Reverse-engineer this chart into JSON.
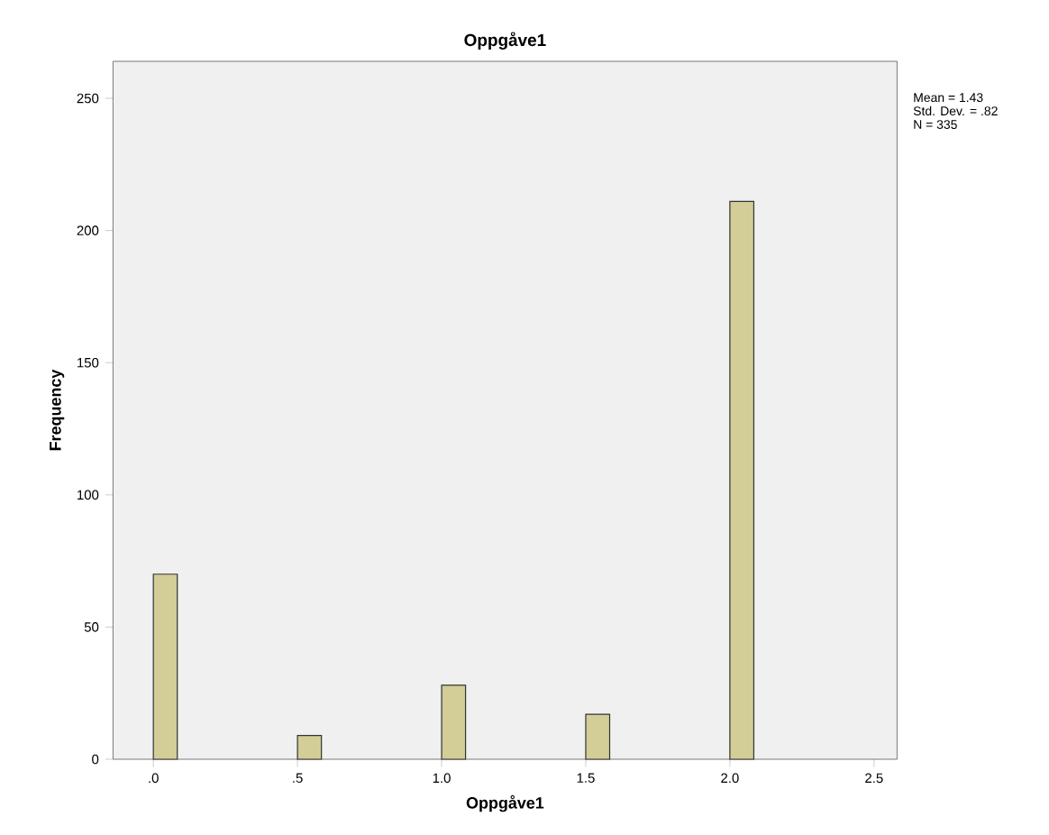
{
  "chart_data": {
    "type": "histogram",
    "title": "Oppgåve1",
    "xlabel": "Oppgåve1",
    "ylabel": "Frequency",
    "bins": [
      0,
      0.083,
      0.167,
      0.25,
      0.333,
      0.417,
      0.5,
      0.583,
      0.667,
      0.75,
      0.833,
      0.917,
      1.0,
      1.083,
      1.167,
      1.25,
      1.333,
      1.417,
      1.5,
      1.583,
      1.667,
      1.75,
      1.833,
      1.917,
      2.0,
      2.083
    ],
    "values": [
      70,
      0,
      0,
      0,
      0,
      0,
      9,
      0,
      0,
      0,
      0,
      0,
      28,
      0,
      0,
      0,
      0,
      0,
      17,
      0,
      0,
      0,
      0,
      0,
      211
    ],
    "color": "#d3cd97",
    "xlim": [
      -0.14,
      2.58
    ],
    "xticks": [
      {
        "value": 0,
        "label": ".0"
      },
      {
        "value": 0.5,
        "label": ".5"
      },
      {
        "value": 1.0,
        "label": "1.0"
      },
      {
        "value": 1.5,
        "label": "1.5"
      },
      {
        "value": 2.0,
        "label": "2.0"
      },
      {
        "value": 2.5,
        "label": "2.5"
      }
    ],
    "ylim": [
      0,
      264
    ],
    "yticks": [
      0,
      50,
      100,
      150,
      200,
      250
    ],
    "annotations": [
      "Mean = 1.43",
      "Std. Dev. = .82",
      "N = 335"
    ]
  }
}
